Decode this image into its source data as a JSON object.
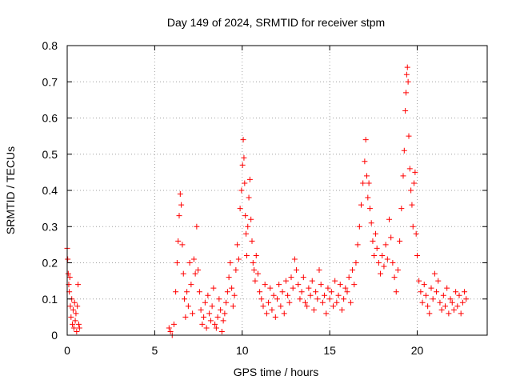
{
  "chart_data": {
    "type": "scatter",
    "title": "Day 149 of 2024, SRMTID for receiver stpm",
    "xlabel": "GPS time / hours",
    "ylabel": "SRMTID / TECUs",
    "xlim": [
      0,
      24
    ],
    "ylim": [
      0,
      0.8
    ],
    "xticks": [
      0,
      5,
      10,
      15,
      20
    ],
    "xtick_labels": [
      "0",
      "5",
      "10",
      "15",
      "20"
    ],
    "yticks": [
      0,
      0.1,
      0.2,
      0.3,
      0.4,
      0.5,
      0.6,
      0.7,
      0.8
    ],
    "ytick_labels": [
      "0",
      "0.1",
      "0.2",
      "0.3",
      "0.4",
      "0.5",
      "0.6",
      "0.7",
      "0.8"
    ],
    "grid": true,
    "marker": "+",
    "series": [
      {
        "name": "SRMTID",
        "color": "#ff0000",
        "x": [
          0.0,
          0.03,
          0.06,
          0.09,
          0.12,
          0.15,
          0.18,
          0.22,
          0.26,
          0.3,
          0.34,
          0.38,
          0.42,
          0.46,
          0.5,
          0.54,
          0.58,
          0.62,
          0.66,
          0.7,
          5.82,
          5.9,
          6.0,
          6.1,
          6.2,
          6.28,
          6.34,
          6.4,
          6.46,
          6.52,
          6.58,
          6.64,
          6.7,
          6.76,
          6.84,
          6.92,
          7.0,
          7.08,
          7.16,
          7.24,
          7.32,
          7.4,
          7.48,
          7.56,
          7.64,
          7.72,
          7.8,
          7.88,
          7.96,
          8.04,
          8.12,
          8.2,
          8.28,
          8.36,
          8.44,
          8.52,
          8.6,
          8.68,
          8.76,
          8.84,
          8.92,
          9.0,
          9.08,
          9.16,
          9.24,
          9.32,
          9.4,
          9.48,
          9.56,
          9.64,
          9.72,
          9.8,
          9.88,
          9.96,
          10.02,
          10.06,
          10.1,
          10.14,
          10.18,
          10.22,
          10.26,
          10.32,
          10.38,
          10.44,
          10.5,
          10.56,
          10.62,
          10.68,
          10.74,
          10.8,
          10.9,
          11.0,
          11.1,
          11.2,
          11.3,
          11.4,
          11.5,
          11.6,
          11.7,
          11.8,
          11.9,
          12.0,
          12.1,
          12.2,
          12.3,
          12.4,
          12.5,
          12.6,
          12.7,
          12.8,
          12.9,
          13.0,
          13.1,
          13.2,
          13.3,
          13.4,
          13.5,
          13.6,
          13.7,
          13.8,
          13.9,
          14.0,
          14.1,
          14.2,
          14.3,
          14.4,
          14.5,
          14.6,
          14.7,
          14.8,
          14.9,
          15.0,
          15.1,
          15.2,
          15.3,
          15.4,
          15.5,
          15.6,
          15.7,
          15.8,
          15.9,
          16.0,
          16.1,
          16.2,
          16.3,
          16.4,
          16.5,
          16.6,
          16.7,
          16.8,
          16.9,
          17.0,
          17.06,
          17.12,
          17.18,
          17.24,
          17.3,
          17.38,
          17.46,
          17.54,
          17.62,
          17.7,
          17.8,
          17.9,
          18.0,
          18.1,
          18.2,
          18.3,
          18.4,
          18.5,
          18.6,
          18.7,
          18.8,
          18.9,
          19.0,
          19.1,
          19.2,
          19.26,
          19.32,
          19.36,
          19.4,
          19.44,
          19.48,
          19.52,
          19.58,
          19.64,
          19.7,
          19.76,
          19.82,
          19.88,
          19.94,
          20.0,
          20.1,
          20.2,
          20.3,
          20.4,
          20.5,
          20.6,
          20.7,
          20.8,
          20.9,
          21.0,
          21.1,
          21.2,
          21.3,
          21.4,
          21.5,
          21.6,
          21.7,
          21.8,
          21.9,
          22.0,
          22.1,
          22.2,
          22.3,
          22.4,
          22.5,
          22.6,
          22.7,
          22.8
        ],
        "y": [
          0.24,
          0.21,
          0.17,
          0.14,
          0.12,
          0.16,
          0.08,
          0.05,
          0.1,
          0.03,
          0.07,
          0.02,
          0.09,
          0.04,
          0.06,
          0.01,
          0.08,
          0.14,
          0.03,
          0.02,
          0.02,
          0.01,
          0.0,
          0.03,
          0.12,
          0.2,
          0.26,
          0.33,
          0.39,
          0.36,
          0.25,
          0.17,
          0.1,
          0.05,
          0.12,
          0.08,
          0.2,
          0.14,
          0.06,
          0.21,
          0.17,
          0.3,
          0.18,
          0.12,
          0.07,
          0.03,
          0.05,
          0.09,
          0.02,
          0.11,
          0.06,
          0.04,
          0.08,
          0.13,
          0.03,
          0.02,
          0.05,
          0.1,
          0.07,
          0.01,
          0.04,
          0.06,
          0.09,
          0.12,
          0.16,
          0.2,
          0.13,
          0.08,
          0.11,
          0.18,
          0.25,
          0.21,
          0.35,
          0.4,
          0.47,
          0.54,
          0.49,
          0.42,
          0.33,
          0.28,
          0.22,
          0.3,
          0.38,
          0.43,
          0.32,
          0.26,
          0.2,
          0.18,
          0.15,
          0.22,
          0.17,
          0.12,
          0.1,
          0.08,
          0.14,
          0.06,
          0.09,
          0.13,
          0.07,
          0.11,
          0.05,
          0.1,
          0.14,
          0.08,
          0.12,
          0.06,
          0.15,
          0.11,
          0.09,
          0.16,
          0.13,
          0.21,
          0.18,
          0.14,
          0.1,
          0.12,
          0.16,
          0.09,
          0.08,
          0.13,
          0.11,
          0.15,
          0.07,
          0.12,
          0.1,
          0.18,
          0.14,
          0.09,
          0.11,
          0.06,
          0.13,
          0.1,
          0.12,
          0.08,
          0.15,
          0.09,
          0.11,
          0.14,
          0.07,
          0.1,
          0.13,
          0.12,
          0.16,
          0.09,
          0.18,
          0.14,
          0.2,
          0.25,
          0.3,
          0.36,
          0.42,
          0.48,
          0.54,
          0.44,
          0.38,
          0.42,
          0.35,
          0.31,
          0.26,
          0.22,
          0.28,
          0.24,
          0.2,
          0.17,
          0.22,
          0.19,
          0.25,
          0.21,
          0.32,
          0.27,
          0.2,
          0.16,
          0.12,
          0.18,
          0.26,
          0.35,
          0.44,
          0.51,
          0.62,
          0.67,
          0.72,
          0.74,
          0.7,
          0.55,
          0.46,
          0.4,
          0.36,
          0.3,
          0.42,
          0.45,
          0.28,
          0.22,
          0.15,
          0.12,
          0.09,
          0.14,
          0.11,
          0.08,
          0.06,
          0.13,
          0.1,
          0.17,
          0.12,
          0.15,
          0.09,
          0.07,
          0.11,
          0.08,
          0.13,
          0.06,
          0.1,
          0.09,
          0.07,
          0.12,
          0.08,
          0.11,
          0.06,
          0.09,
          0.12,
          0.1
        ]
      }
    ]
  }
}
